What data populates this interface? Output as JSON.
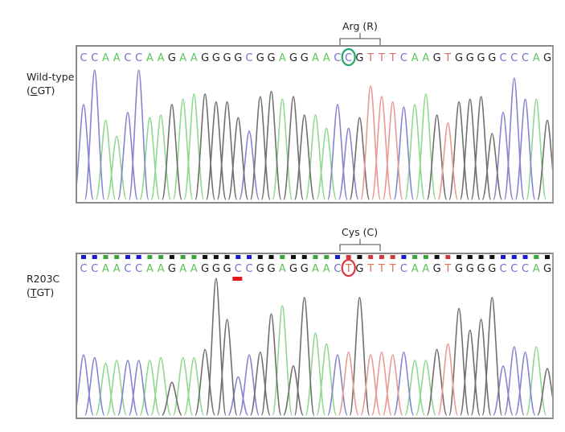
{
  "chart_data": [
    {
      "type": "chromatogram",
      "title": "Wild-type (CGT)",
      "panel_label_line1": "Wild-type",
      "panel_label_line2_pre": "(",
      "panel_label_line2_u": "C",
      "panel_label_line2_post": "GT)",
      "codon_annotation": "Arg (R)",
      "highlight_index": 24,
      "highlight_color": "#1fa86a",
      "sequence": "CCAACCAAGAAGGGGCGGAGGAACCGTTTCAAGTGGGGCCCAG",
      "quality_bars": false,
      "peak_heights": [
        0.72,
        0.98,
        0.6,
        0.48,
        0.66,
        0.98,
        0.62,
        0.64,
        0.72,
        0.76,
        0.8,
        0.8,
        0.74,
        0.74,
        0.62,
        0.52,
        0.78,
        0.82,
        0.76,
        0.78,
        0.64,
        0.64,
        0.54,
        0.72,
        0.54,
        0.62,
        0.86,
        0.78,
        0.74,
        0.7,
        0.72,
        0.8,
        0.64,
        0.58,
        0.74,
        0.76,
        0.78,
        0.5,
        0.66,
        0.92,
        0.76,
        0.76,
        0.6
      ]
    },
    {
      "type": "chromatogram",
      "title": "R203C (TGT)",
      "panel_label_line1": "R203C",
      "panel_label_line2_pre": "(",
      "panel_label_line2_u": "T",
      "panel_label_line2_post": "GT)",
      "codon_annotation": "Cys (C)",
      "highlight_index": 24,
      "highlight_color": "#d9363e",
      "sequence": "CCAACCAAGAAGGGCCGGAGGAACTGTTTCAAGTGGGGCCCAG",
      "quality_bars": true,
      "quality_mark_index": 14,
      "peak_heights": [
        0.44,
        0.42,
        0.38,
        0.4,
        0.4,
        0.4,
        0.4,
        0.42,
        0.24,
        0.42,
        0.42,
        0.48,
        1.0,
        0.7,
        0.28,
        0.44,
        0.46,
        0.74,
        0.8,
        0.36,
        0.86,
        0.6,
        0.52,
        0.44,
        0.46,
        0.86,
        0.44,
        0.46,
        0.44,
        0.46,
        0.4,
        0.4,
        0.48,
        0.52,
        0.78,
        0.62,
        0.7,
        0.86,
        0.36,
        0.5,
        0.46,
        0.5,
        0.34
      ]
    }
  ],
  "colors": {
    "A": "#5cc45c",
    "C": "#6f6fc8",
    "G": "#222222",
    "T": "#d9735f",
    "trace_A": "#8fd88f",
    "trace_C": "#8585d0",
    "trace_G": "#707070",
    "trace_T": "#e89a92",
    "qbar_A": "#3aa33a",
    "qbar_C": "#1a1ad0",
    "qbar_G": "#111111",
    "qbar_T": "#d03a3a",
    "mark": "#e01818"
  }
}
